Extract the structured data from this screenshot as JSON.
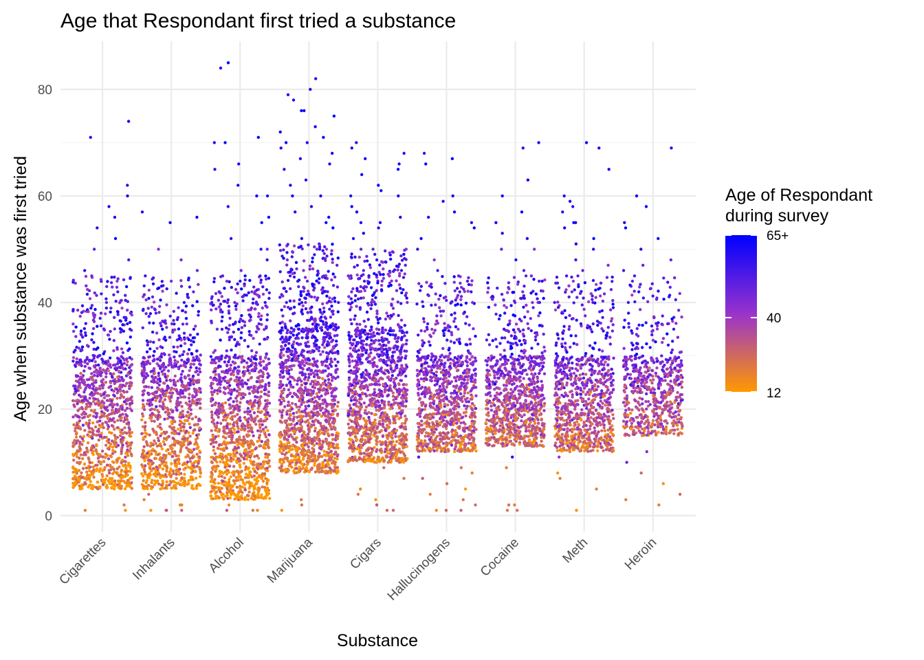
{
  "chart_data": {
    "type": "scatter",
    "jitter": true,
    "title": "Age that Respondant first tried a substance",
    "xlabel": "Substance",
    "ylabel": "Age when substance was first tried",
    "ylim": [
      -3,
      89
    ],
    "yticks": [
      0,
      20,
      40,
      60,
      80
    ],
    "grid": true,
    "categories": [
      "Cigarettes",
      "Inhalants",
      "Alcohol",
      "Marijuana",
      "Cigars",
      "Hallucinogens",
      "Cocaine",
      "Meth",
      "Heroin"
    ],
    "series": [
      {
        "category": "Cigarettes",
        "body_range": [
          5,
          30
        ],
        "density": 1.0,
        "outliers": [
          74,
          71,
          62,
          60,
          58,
          56,
          54,
          52,
          50,
          48,
          46,
          45,
          44,
          42,
          40,
          38,
          36,
          35,
          33,
          2,
          1,
          1
        ]
      },
      {
        "category": "Inhalants",
        "body_range": [
          5,
          30
        ],
        "density": 0.95,
        "outliers": [
          57,
          56,
          55,
          50,
          48,
          46,
          45,
          44,
          42,
          40,
          38,
          36,
          35,
          33,
          4,
          3,
          2,
          2,
          1,
          1,
          1,
          1
        ]
      },
      {
        "category": "Alcohol",
        "body_range": [
          3,
          30
        ],
        "density": 1.15,
        "outliers": [
          85,
          84,
          71,
          70,
          70,
          66,
          65,
          62,
          60,
          60,
          58,
          56,
          55,
          52,
          50,
          50,
          48,
          46,
          45,
          45,
          42,
          40,
          40,
          40,
          38,
          36,
          35,
          35,
          33,
          2,
          1,
          1,
          1
        ]
      },
      {
        "category": "Marijuana",
        "body_range": [
          8,
          36
        ],
        "density": 1.3,
        "outliers": [
          82,
          80,
          79,
          78,
          76,
          76,
          75,
          73,
          72,
          71,
          70,
          70,
          69,
          68,
          67,
          66,
          65,
          63,
          62,
          60,
          60,
          58,
          57,
          56,
          55,
          54,
          52,
          50,
          50,
          48,
          47,
          46,
          45,
          45,
          44,
          42,
          41,
          40,
          40,
          40,
          38,
          37,
          35,
          35,
          3,
          2,
          1
        ]
      },
      {
        "category": "Cigars",
        "body_range": [
          10,
          35
        ],
        "density": 1.2,
        "outliers": [
          70,
          69,
          68,
          67,
          66,
          65,
          64,
          62,
          61,
          60,
          60,
          58,
          57,
          56,
          55,
          55,
          54,
          53,
          52,
          50,
          50,
          50,
          48,
          47,
          46,
          45,
          45,
          45,
          44,
          43,
          42,
          40,
          40,
          40,
          38,
          37,
          36,
          9,
          7,
          5,
          4,
          3,
          2,
          1,
          1
        ]
      },
      {
        "category": "Hallucinogens",
        "body_range": [
          12,
          30
        ],
        "density": 0.9,
        "outliers": [
          68,
          67,
          66,
          60,
          59,
          57,
          56,
          55,
          54,
          52,
          50,
          48,
          46,
          45,
          44,
          42,
          40,
          38,
          36,
          35,
          33,
          11,
          9,
          8,
          7,
          6,
          5,
          4,
          3,
          2,
          1,
          1,
          1
        ]
      },
      {
        "category": "Cocaine",
        "body_range": [
          13,
          30
        ],
        "density": 0.9,
        "outliers": [
          70,
          69,
          63,
          60,
          57,
          55,
          53,
          52,
          50,
          50,
          48,
          46,
          45,
          45,
          44,
          42,
          40,
          40,
          40,
          38,
          37,
          36,
          35,
          35,
          11,
          9,
          2,
          2,
          1,
          1
        ]
      },
      {
        "category": "Meth",
        "body_range": [
          12,
          30
        ],
        "density": 0.85,
        "outliers": [
          70,
          69,
          65,
          60,
          59,
          58,
          57,
          55,
          55,
          54,
          52,
          51,
          50,
          48,
          47,
          46,
          45,
          45,
          44,
          42,
          40,
          40,
          38,
          37,
          36,
          35,
          11,
          8,
          7,
          5,
          1
        ]
      },
      {
        "category": "Heroin",
        "body_range": [
          15,
          30
        ],
        "density": 0.6,
        "outliers": [
          69,
          60,
          58,
          55,
          54,
          52,
          50,
          48,
          47,
          46,
          45,
          44,
          42,
          40,
          38,
          36,
          35,
          34,
          32,
          12,
          10,
          8,
          6,
          4,
          3,
          2
        ]
      }
    ],
    "legend": {
      "title_line1": "Age of Respondant",
      "title_line2": "during survey",
      "labels": [
        "65+",
        "40",
        "12"
      ],
      "color_low": "#ff9900",
      "color_mid": "#9933cc",
      "color_high": "#0000ff",
      "placement": "right"
    }
  }
}
